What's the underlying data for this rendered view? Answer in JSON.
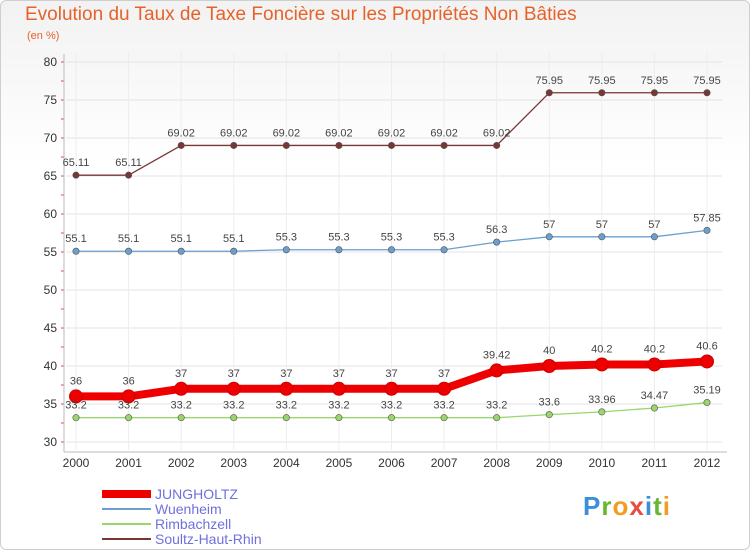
{
  "title": "Evolution du Taux de Taxe Foncière sur les Propriétés Non Bâties",
  "unit_label": "(en %)",
  "logo": {
    "letters": [
      "P",
      "r",
      "o",
      "x",
      "i",
      "t",
      "i"
    ],
    "colors": [
      "#3a8fd8",
      "#6ab532",
      "#f39c1f",
      "#e74c3c",
      "#3a8fd8",
      "#6ab532",
      "#f39c1f"
    ]
  },
  "chart_data": {
    "type": "line",
    "title": "Evolution du Taux de Taxe Foncière sur les Propriétés Non Bâties",
    "ylabel": "(en %)",
    "xlabel": "",
    "categories": [
      "2000",
      "2001",
      "2002",
      "2003",
      "2004",
      "2005",
      "2006",
      "2007",
      "2008",
      "2009",
      "2010",
      "2011",
      "2012"
    ],
    "ylim": [
      30,
      80
    ],
    "yticks": [
      30,
      35,
      40,
      45,
      50,
      55,
      60,
      65,
      70,
      75,
      80
    ],
    "series": [
      {
        "name": "JUNGHOLTZ",
        "color": "#ee0000",
        "values": [
          36,
          36,
          37,
          37,
          37,
          37,
          37,
          37,
          39.42,
          40,
          40.2,
          40.2,
          40.6
        ],
        "labels": [
          "36",
          "36",
          "37",
          "37",
          "37",
          "37",
          "37",
          "37",
          "39.42",
          "40",
          "40.2",
          "40.2",
          "40.6"
        ]
      },
      {
        "name": "Wuenheim",
        "color": "#6b9fd0",
        "values": [
          55.1,
          55.1,
          55.1,
          55.1,
          55.3,
          55.3,
          55.3,
          55.3,
          56.3,
          57,
          57,
          57,
          57.85
        ],
        "labels": [
          "55.1",
          "55.1",
          "55.1",
          "55.1",
          "55.3",
          "55.3",
          "55.3",
          "55.3",
          "56.3",
          "57",
          "57",
          "57",
          "57.85"
        ]
      },
      {
        "name": "Rimbachzell",
        "color": "#99d66b",
        "values": [
          33.2,
          33.2,
          33.2,
          33.2,
          33.2,
          33.2,
          33.2,
          33.2,
          33.2,
          33.6,
          33.96,
          34.47,
          35.19
        ],
        "labels": [
          "33.2",
          "33.2",
          "33.2",
          "33.2",
          "33.2",
          "33.2",
          "33.2",
          "33.2",
          "33.2",
          "33.6",
          "33.96",
          "34.47",
          "35.19"
        ]
      },
      {
        "name": "Soultz-Haut-Rhin",
        "color": "#7a3535",
        "values": [
          65.11,
          65.11,
          69.02,
          69.02,
          69.02,
          69.02,
          69.02,
          69.02,
          69.02,
          75.95,
          75.95,
          75.95,
          75.95
        ],
        "labels": [
          "65.11",
          "65.11",
          "69.02",
          "69.02",
          "69.02",
          "69.02",
          "69.02",
          "69.02",
          "69.02",
          "75.95",
          "75.95",
          "75.95",
          "75.95"
        ]
      }
    ],
    "grid": true,
    "legend_position": "bottom-left"
  }
}
